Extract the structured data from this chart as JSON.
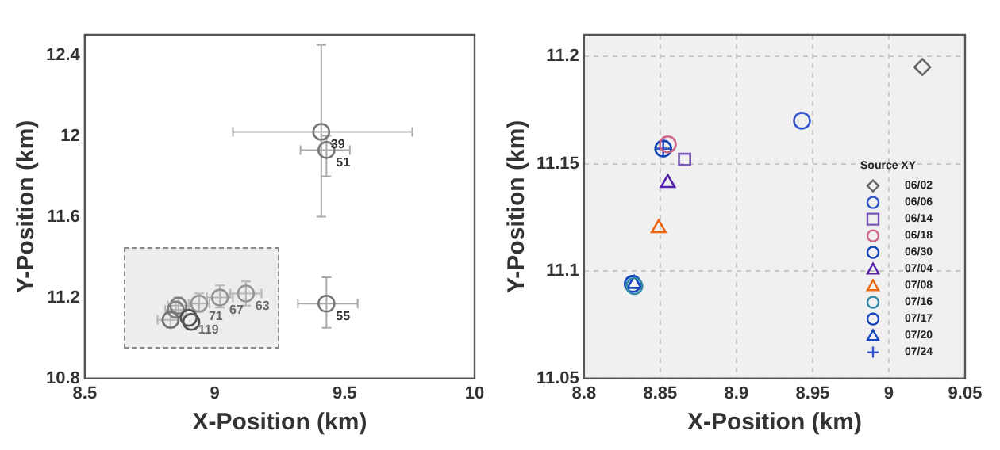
{
  "chart_data": [
    {
      "type": "scatter",
      "xlabel": "X-Position (km)",
      "ylabel": "Y-Position (km)",
      "xlim": [
        8.5,
        10
      ],
      "xticks": [
        8.5,
        9,
        9.5,
        10
      ],
      "ylim": [
        10.8,
        12.5
      ],
      "yticks": [
        10.8,
        11.2,
        11.6,
        12,
        12.4
      ],
      "marker": "circle",
      "series": [
        {
          "x": [
            9.41,
            9.43,
            9.43,
            9.12,
            9.02,
            8.94,
            8.86,
            8.85,
            8.83,
            8.9,
            8.91
          ],
          "values": [
            12.02,
            11.93,
            11.17,
            11.22,
            11.2,
            11.17,
            11.16,
            11.14,
            11.09,
            11.1,
            11.08
          ],
          "colors": [
            "#777777",
            "#777777",
            "#777777",
            "#777777",
            "#777777",
            "#777777",
            "#555555",
            "#555555",
            "#444444",
            "#111111",
            "#111111"
          ],
          "errors": [
            [
              11.6,
              12.45
            ],
            [
              11.8,
              12.0
            ],
            [
              11.05,
              11.3
            ],
            [
              11.16,
              11.28
            ],
            [
              11.15,
              11.26
            ],
            [
              11.13,
              11.22
            ],
            [
              11.12,
              11.2
            ],
            [
              11.1,
              11.18
            ],
            [
              11.05,
              11.13
            ],
            null,
            null
          ],
          "xerrors": [
            [
              9.07,
              9.76
            ],
            [
              9.33,
              9.52
            ],
            [
              9.32,
              9.55
            ],
            [
              9.06,
              9.18
            ],
            [
              8.97,
              9.07
            ],
            [
              8.9,
              8.98
            ],
            [
              8.82,
              8.9
            ],
            [
              8.81,
              8.89
            ],
            [
              8.78,
              8.88
            ],
            null,
            null
          ]
        }
      ],
      "annotations": [
        {
          "text": "39",
          "x": 9.41,
          "y": 12.02
        },
        {
          "text": "51",
          "x": 9.43,
          "y": 11.93
        },
        {
          "text": "55",
          "x": 9.43,
          "y": 11.17
        },
        {
          "text": "63",
          "x": 9.12,
          "y": 11.22
        },
        {
          "text": "67",
          "x": 9.02,
          "y": 11.2
        },
        {
          "text": "71",
          "x": 8.94,
          "y": 11.17
        },
        {
          "text": "119",
          "x": 8.9,
          "y": 11.1
        }
      ]
    },
    {
      "type": "scatter",
      "xlabel": "X-Position (km)",
      "ylabel": "Y-Position (km)",
      "xlim": [
        8.8,
        9.05
      ],
      "xticks": [
        8.8,
        8.85,
        8.9,
        8.95,
        9,
        9.05
      ],
      "ylim": [
        11.05,
        11.21
      ],
      "yticks": [
        11.05,
        11.1,
        11.15,
        11.2
      ],
      "grid": true,
      "legend": "bottom right",
      "legend_title": "Source XY",
      "series": [
        {
          "name": "06/02",
          "color": "#666666",
          "marker": "diamond",
          "x": [
            9.022
          ],
          "values": [
            11.195
          ]
        },
        {
          "name": "06/06",
          "color": "#3355cc",
          "marker": "circle",
          "x": [
            8.943
          ],
          "values": [
            11.17
          ]
        },
        {
          "name": "06/14",
          "color": "#7755bb",
          "marker": "square",
          "x": [
            8.866
          ],
          "values": [
            11.152
          ]
        },
        {
          "name": "06/18",
          "color": "#cc6688",
          "marker": "circle",
          "x": [
            8.855
          ],
          "values": [
            11.159
          ]
        },
        {
          "name": "06/30",
          "color": "#1144bb",
          "marker": "circle",
          "x": [
            8.852
          ],
          "values": [
            11.157
          ]
        },
        {
          "name": "07/04",
          "color": "#5522aa",
          "marker": "triangle",
          "x": [
            8.855
          ],
          "values": [
            11.141
          ]
        },
        {
          "name": "07/08",
          "color": "#ee6611",
          "marker": "triangle",
          "x": [
            8.849
          ],
          "values": [
            11.12
          ]
        },
        {
          "name": "07/16",
          "color": "#3388aa",
          "marker": "circle",
          "x": [
            8.833
          ],
          "values": [
            11.093
          ]
        },
        {
          "name": "07/17",
          "color": "#1144bb",
          "marker": "circle",
          "x": [
            8.832
          ],
          "values": [
            11.094
          ]
        },
        {
          "name": "07/20",
          "color": "#1144bb",
          "marker": "triangle",
          "x": [
            8.833
          ],
          "values": [
            11.094
          ]
        },
        {
          "name": "07/24",
          "color": "#3355cc",
          "marker": "cross",
          "x": [
            8.852
          ],
          "values": [
            11.157
          ]
        }
      ]
    }
  ]
}
